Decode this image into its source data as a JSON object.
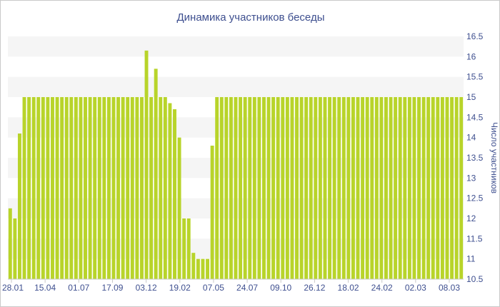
{
  "chart_data": {
    "type": "bar",
    "title": "Динамика участников беседы",
    "xlabel": "",
    "ylabel": "Число участников",
    "ylim": [
      10.5,
      16.5
    ],
    "y_ticks": [
      "10.5",
      "11",
      "11.5",
      "12",
      "12.5",
      "13",
      "13.5",
      "14",
      "14.5",
      "15",
      "15.5",
      "16",
      "16.5"
    ],
    "x_tick_labels": [
      "28.01",
      "15.04",
      "01.07",
      "17.09",
      "03.12",
      "19.02",
      "07.05",
      "24.07",
      "09.10",
      "26.12",
      "18.02",
      "24.02",
      "02.03",
      "08.03"
    ],
    "grid": "horizontal bands",
    "bar_color": "#b8d42a",
    "band_color": "#f5f5f5",
    "text_color": "#3e4f8f",
    "series": [
      {
        "values": [
          12.25,
          12.0,
          14.1,
          15.0,
          15.0,
          15.0,
          15.0,
          15.0,
          15.0,
          15.0,
          15.0,
          15.0,
          15.0,
          15.0,
          15.0,
          15.0,
          15.0,
          15.0,
          15.0,
          15.0,
          15.0,
          15.0,
          15.0,
          15.0,
          15.0,
          15.0,
          15.0,
          15.0,
          15.0,
          16.15,
          15.0,
          15.7,
          15.0,
          15.0,
          14.85,
          14.7,
          14.0,
          12.0,
          12.0,
          11.15,
          11.0,
          11.0,
          11.0,
          13.8,
          15.0,
          15.0,
          15.0,
          15.0,
          15.0,
          15.0,
          15.0,
          15.0,
          15.0,
          15.0,
          15.0,
          15.0,
          15.0,
          15.0,
          15.0,
          15.0,
          15.0,
          15.0,
          15.0,
          15.0,
          15.0,
          15.0,
          15.0,
          15.0,
          15.0,
          15.0,
          15.0,
          15.0,
          15.0,
          15.0,
          15.0,
          15.0,
          15.0,
          15.0,
          15.0,
          15.0,
          15.0,
          15.0,
          15.0,
          15.0,
          15.0,
          15.0,
          15.0,
          15.0,
          15.0,
          15.0,
          15.0,
          15.0,
          15.0,
          15.0,
          15.0,
          15.0,
          15.0
        ]
      }
    ]
  }
}
